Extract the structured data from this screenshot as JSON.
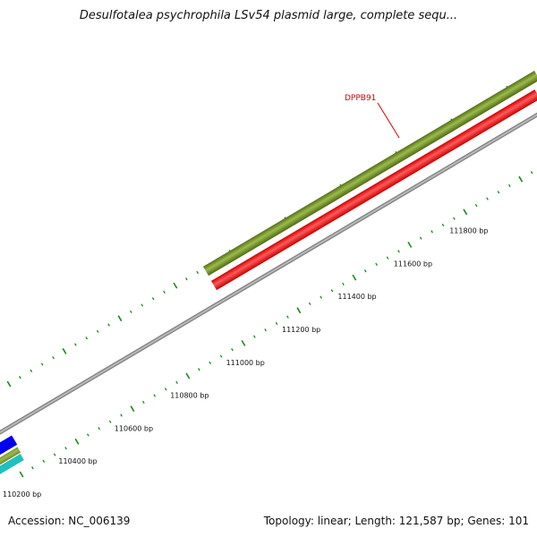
{
  "title": "Desulfotalea psychrophila LSv54 plasmid large, complete sequ...",
  "footer": {
    "accession": "Accession: NC_006139",
    "stats": "Topology: linear; Length: 121,587 bp; Genes: 101"
  },
  "gene_label": "DPPB91",
  "scale_labels": [
    {
      "label": "110200 bp",
      "pos": 110200
    },
    {
      "label": "110400 bp",
      "pos": 110400
    },
    {
      "label": "110600 bp",
      "pos": 110600
    },
    {
      "label": "110800 bp",
      "pos": 110800
    },
    {
      "label": "111000 bp",
      "pos": 111000
    },
    {
      "label": "111200 bp",
      "pos": 111200
    },
    {
      "label": "111400 bp",
      "pos": 111400
    },
    {
      "label": "111600 bp",
      "pos": 111600
    },
    {
      "label": "111800 bp",
      "pos": 111800
    }
  ],
  "colors": {
    "backbone": "#8a8a8a",
    "gene_forward": "#6b8e23",
    "gene_reverse": "#ff0000",
    "gene_blue": "#0000ee",
    "gene_cyan": "#20c0c0",
    "tick": "#1a8a1a",
    "label": "#d40000"
  }
}
